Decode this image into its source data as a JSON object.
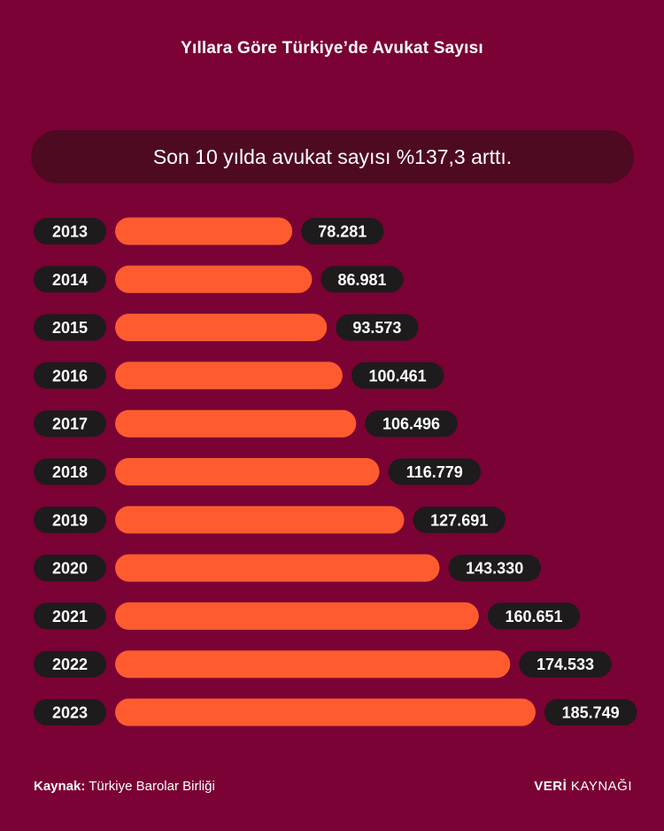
{
  "title": "Yıllara Göre Türkiye’de Avukat Sayısı",
  "highlight": "Son 10 yılda avukat sayısı %137,3 arttı.",
  "source_label": "Kaynak:",
  "source_name": "Türkiye Barolar Birliği",
  "brand_bold": "VERİ",
  "brand_light": "KAYNAĞI",
  "colors": {
    "background": "#7a0234",
    "bar": "#fe5b2f",
    "pill": "#1e1b1c",
    "banner": "#4e0a20"
  },
  "chart_data": {
    "type": "bar",
    "orientation": "horizontal",
    "categories": [
      "2013",
      "2014",
      "2015",
      "2016",
      "2017",
      "2018",
      "2019",
      "2020",
      "2021",
      "2022",
      "2023"
    ],
    "values": [
      78281,
      86981,
      93573,
      100461,
      106496,
      116779,
      127691,
      143330,
      160651,
      174533,
      185749
    ],
    "value_labels": [
      "78.281",
      "86.981",
      "93.573",
      "100.461",
      "106.496",
      "116.779",
      "127.691",
      "143.330",
      "160.651",
      "174.533",
      "185.749"
    ],
    "title": "Yıllara Göre Türkiye’de Avukat Sayısı",
    "xlabel": "",
    "ylabel": "",
    "grid": false,
    "legend": "none"
  }
}
